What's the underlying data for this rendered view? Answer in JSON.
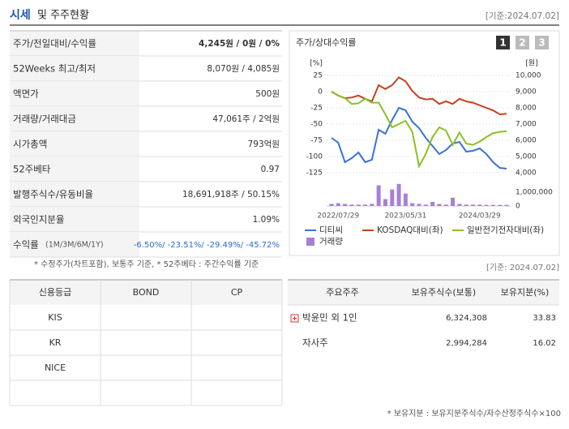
{
  "header": {
    "title": "시세",
    "title_rest": "및 주주현황",
    "date": "[기준:2024.07.02]"
  },
  "market": {
    "rows": [
      {
        "label": "주가/전일대비/수익률",
        "value": "4,245원 / 0원 / 0%"
      },
      {
        "label": "52Weeks 최고/최저",
        "value": "8,070원 / 4,085원"
      },
      {
        "label": "액면가",
        "value": "500원"
      },
      {
        "label": "거래량/거래대금",
        "value": "47,061주 / 2억원"
      },
      {
        "label": "시가총액",
        "value": "793억원"
      },
      {
        "label": "52주베타",
        "value": "0.97"
      },
      {
        "label": "발행주식수/유동비율",
        "value": "18,691,918주 / 50.15%"
      },
      {
        "label": "외국인지분율",
        "value": "1.09%"
      },
      {
        "label": "수익률",
        "sublabel": "(1M/3M/6M/1Y)",
        "value": "-6.50%/ -23.51%/ -29.49%/ -45.72%"
      }
    ],
    "note": "* 수정주가(차트포함), 보통주 기준, * 52주베타 : 주간수익률 기준"
  },
  "chart_panel": {
    "title": "주가/상대수익률",
    "tabs": [
      "1",
      "2",
      "3"
    ]
  },
  "chart_data": {
    "type": "line",
    "ylabel": "[%]",
    "y2label": "[원]",
    "categories": [
      null,
      "2022/07/29",
      null,
      null,
      null,
      null,
      null,
      null,
      null,
      null,
      null,
      "2023/05/31",
      null,
      null,
      null,
      null,
      null,
      null,
      null,
      null,
      null,
      null,
      "2024/03/29",
      null,
      null,
      null,
      null
    ],
    "ylim": [
      -125,
      25
    ],
    "yticks": [
      25,
      0,
      -25,
      -50,
      -75,
      -100,
      -125
    ],
    "y2lim": [
      4000,
      10000
    ],
    "y2ticks": [
      {
        "value": 10000,
        "label": "10,000"
      },
      {
        "value": 9000,
        "label": "9,000"
      },
      {
        "value": 8000,
        "label": "8,000"
      },
      {
        "value": 7000,
        "label": "7,000"
      },
      {
        "value": 6000,
        "label": "6,000"
      },
      {
        "value": 5000,
        "label": "5,000"
      },
      {
        "value": 4000,
        "label": "4,000"
      }
    ],
    "y3lim": [
      0,
      1000000
    ],
    "y3ticks": [
      {
        "value": 1000000,
        "label": "1,000,000"
      },
      0
    ],
    "grid": true,
    "series": [
      {
        "name": "디티씨",
        "color": "#3b73d0",
        "axis": "y2",
        "values": [
          6150,
          5850,
          4650,
          4900,
          5250,
          4650,
          4800,
          6650,
          6400,
          7250,
          8000,
          7850,
          7150,
          6750,
          6150,
          5650,
          5150,
          5400,
          5800,
          5900,
          5300,
          5350,
          5500,
          5150,
          4650,
          4300,
          4250
        ]
      },
      {
        "name": "KOSDAQ대비(좌)",
        "color": "#c8401c",
        "values": [
          0,
          -6,
          -10,
          -9,
          -6,
          -11,
          -15,
          10,
          4,
          10,
          22,
          16,
          1,
          -9,
          -12,
          -11,
          -19,
          -15,
          -19,
          -11,
          -15,
          -17,
          -21,
          -25,
          -29,
          -35,
          -34
        ]
      },
      {
        "name": "일반전기전자대비(좌)",
        "color": "#8cbf26",
        "values": [
          0,
          -6,
          -10,
          -19,
          -18,
          -11,
          -17,
          -17,
          -35,
          -55,
          -50,
          -45,
          -62,
          -115,
          -96,
          -70,
          -55,
          -60,
          -82,
          -63,
          -80,
          -82,
          -77,
          -70,
          -64,
          -62,
          -61
        ]
      },
      {
        "name": "거래량",
        "color": "#a77fd8",
        "axis": "y3",
        "type": "bar",
        "values": [
          150000,
          200000,
          150000,
          100000,
          100000,
          100000,
          150000,
          1500000,
          500000,
          1200000,
          1600000,
          900000,
          200000,
          150000,
          100000,
          300000,
          150000,
          100000,
          600000,
          150000,
          100000,
          100000,
          100000,
          80000,
          80000,
          80000,
          80000
        ]
      }
    ]
  },
  "date2": "[기준: 2024.07.02]",
  "credit": {
    "header": [
      "신용등급",
      "BOND",
      "CP"
    ],
    "agencies": [
      "KIS",
      "KR",
      "NICE"
    ]
  },
  "holders": {
    "header": [
      "주요주주",
      "보유주식수(보통)",
      "보유지분(%)"
    ],
    "rows": [
      [
        "박윤민 외 1인",
        "6,324,308",
        33.83
      ],
      [
        "자사주",
        "2,994,284",
        16.02
      ]
    ],
    "note": "* 보유지분 : 보유지분주식수/자수산정주식수×100"
  }
}
